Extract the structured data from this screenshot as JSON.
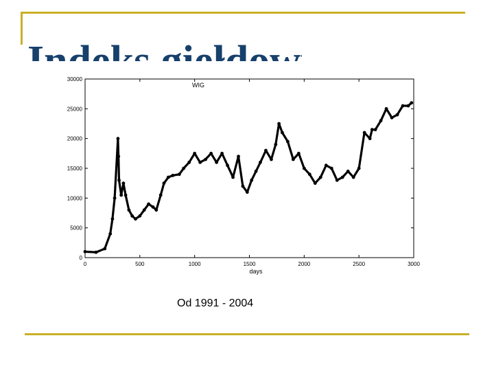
{
  "slide": {
    "title": "Indeks giełdowy WIG",
    "caption": "Od 1991 - 2004",
    "accent_color": "#c9b027",
    "title_color": "#17406b"
  },
  "chart_data": {
    "type": "scatter",
    "legend": "WIG",
    "xlabel": "days",
    "ylabel": "",
    "xlim": [
      0,
      3000
    ],
    "ylim": [
      0,
      30000
    ],
    "xticks": [
      0,
      500,
      1000,
      1500,
      2000,
      2500,
      3000
    ],
    "yticks": [
      0,
      5000,
      10000,
      15000,
      20000,
      25000,
      30000
    ],
    "xtick_labels": [
      "0",
      "500",
      "1000",
      "1500",
      "2000",
      "2500",
      "3000"
    ],
    "ytick_labels": [
      "0",
      "5000",
      "10000",
      "15000",
      "20000",
      "25000",
      "30000"
    ],
    "grid": false,
    "marker_color": "#000000",
    "series": [
      {
        "name": "WIG",
        "x": [
          0,
          100,
          180,
          230,
          250,
          270,
          300,
          305,
          310,
          330,
          350,
          370,
          400,
          430,
          460,
          500,
          540,
          580,
          620,
          650,
          690,
          720,
          760,
          800,
          860,
          900,
          950,
          1000,
          1050,
          1100,
          1150,
          1200,
          1250,
          1300,
          1350,
          1400,
          1440,
          1480,
          1520,
          1560,
          1600,
          1650,
          1700,
          1740,
          1770,
          1800,
          1850,
          1900,
          1950,
          2000,
          2050,
          2100,
          2150,
          2200,
          2250,
          2300,
          2350,
          2400,
          2450,
          2500,
          2550,
          2600,
          2620,
          2650,
          2700,
          2750,
          2800,
          2850,
          2900,
          2950,
          2980
        ],
        "y": [
          1000,
          900,
          1500,
          4000,
          6500,
          10000,
          20000,
          17000,
          13000,
          10500,
          12500,
          10500,
          8000,
          7000,
          6500,
          7000,
          8000,
          9000,
          8500,
          8000,
          10500,
          12500,
          13500,
          13800,
          14000,
          15000,
          16000,
          17500,
          16000,
          16500,
          17500,
          16000,
          17500,
          15500,
          13500,
          17000,
          12000,
          11000,
          13000,
          14500,
          16000,
          18000,
          16500,
          19000,
          22500,
          21000,
          19500,
          16500,
          17500,
          15000,
          14000,
          12500,
          13500,
          15500,
          15000,
          13000,
          13500,
          14500,
          13500,
          15000,
          21000,
          20000,
          21500,
          21500,
          23000,
          25000,
          23500,
          24000,
          25500,
          25500,
          26000
        ]
      }
    ]
  }
}
